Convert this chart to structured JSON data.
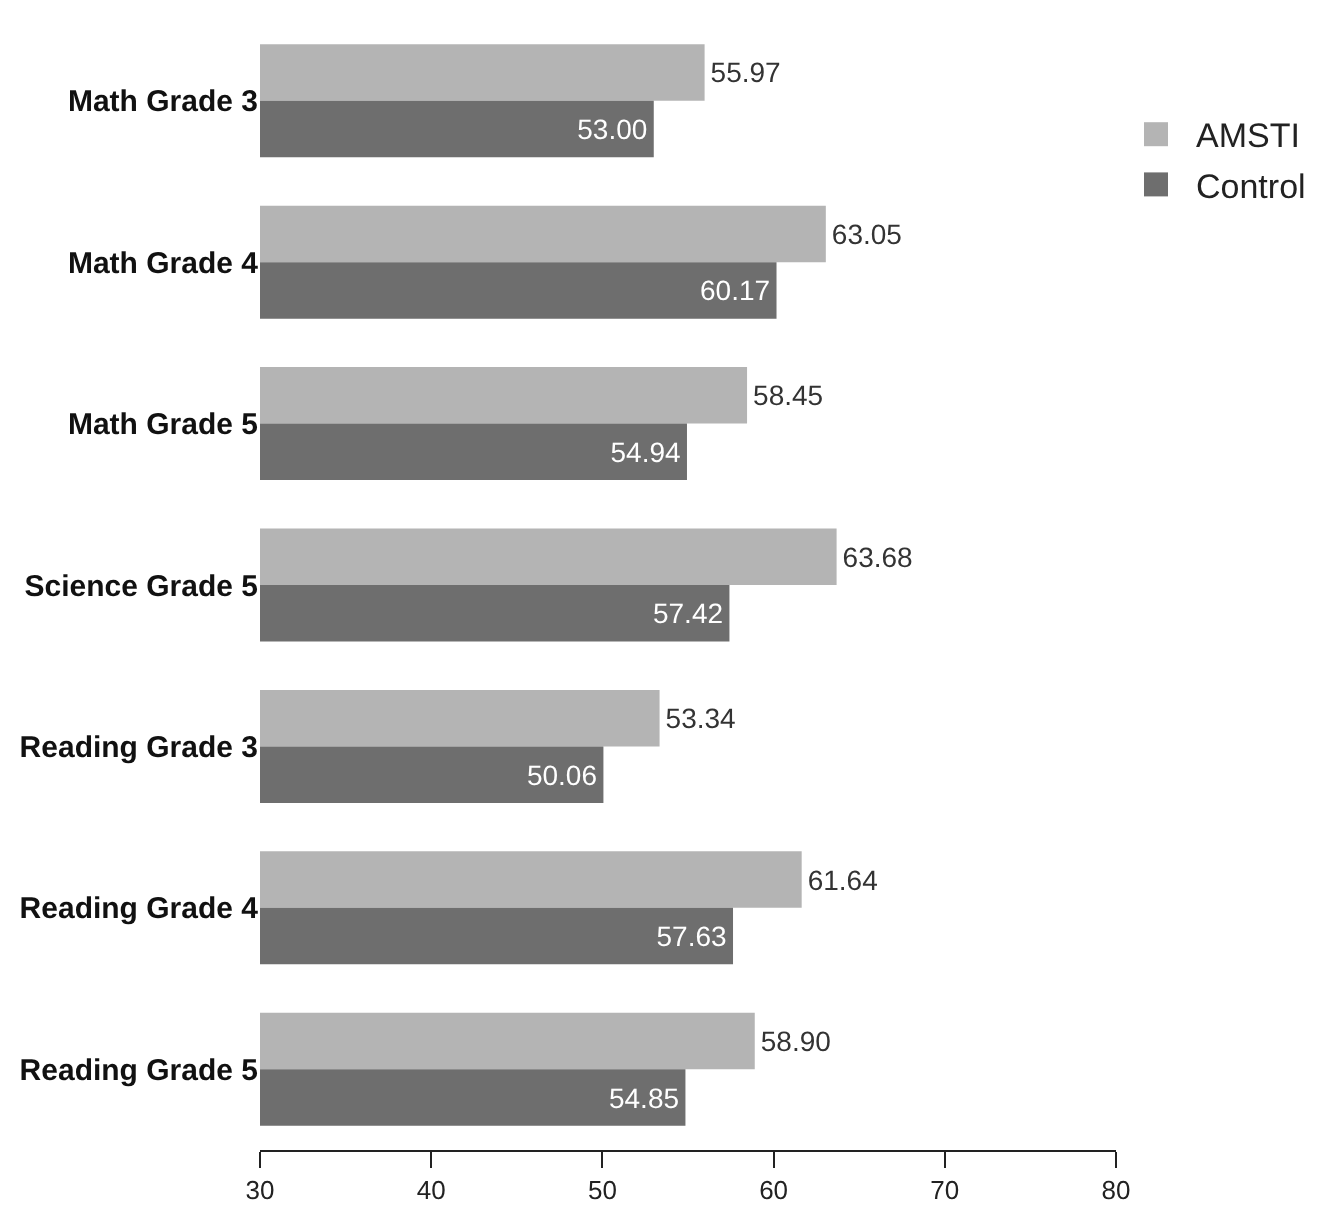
{
  "chart_data": {
    "type": "bar",
    "orientation": "horizontal",
    "categories": [
      "Math Grade 3",
      "Math Grade 4",
      "Math Grade 5",
      "Science Grade 5",
      "Reading Grade 3",
      "Reading Grade 4",
      "Reading Grade 5"
    ],
    "series": [
      {
        "name": "AMSTI",
        "color": "#b4b4b4",
        "values": [
          55.97,
          63.05,
          58.45,
          63.68,
          53.34,
          61.64,
          58.9
        ],
        "value_labels": [
          "55.97",
          "63.05",
          "58.45",
          "63.68",
          "53.34",
          "61.64",
          "58.90"
        ]
      },
      {
        "name": "Control",
        "color": "#6e6e6e",
        "values": [
          53.0,
          60.17,
          54.94,
          57.42,
          50.06,
          57.63,
          54.85
        ],
        "value_labels": [
          "53.00",
          "60.17",
          "54.94",
          "57.42",
          "50.06",
          "57.63",
          "54.85"
        ]
      }
    ],
    "xlim": [
      30,
      80
    ],
    "xticks": [
      30,
      40,
      50,
      60,
      70,
      80
    ],
    "legend": "right"
  }
}
